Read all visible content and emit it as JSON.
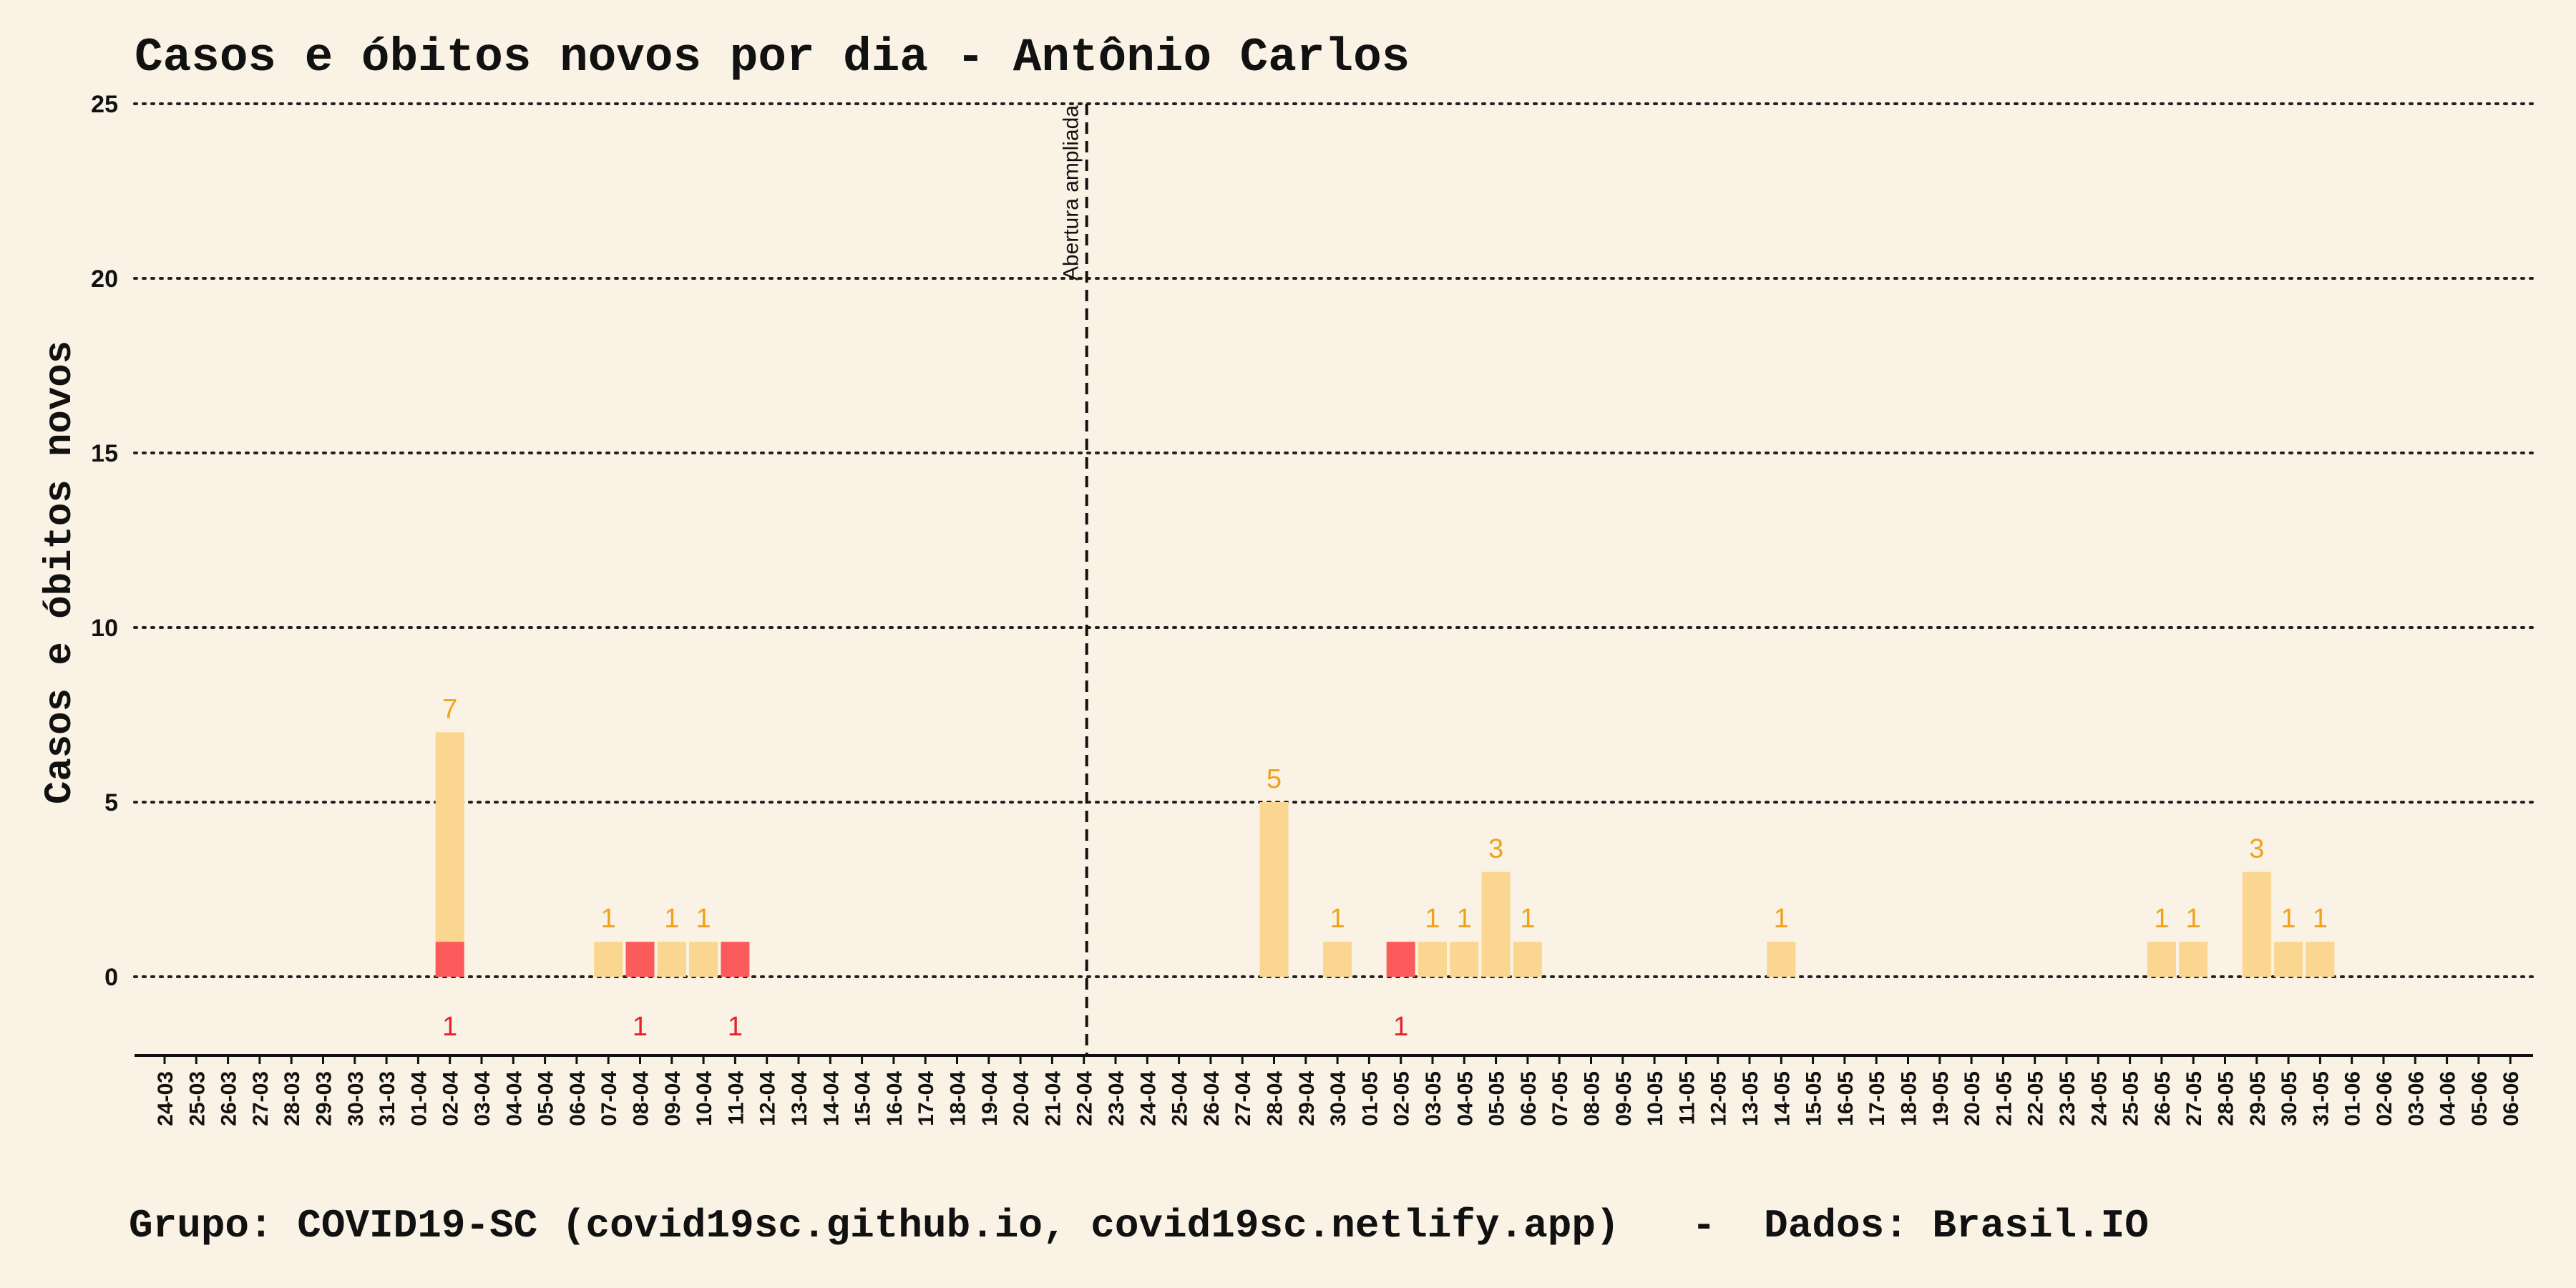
{
  "chart_data": {
    "type": "bar",
    "title": "Casos e óbitos novos por dia -  Antônio Carlos",
    "ylabel": "Casos e óbitos novos",
    "xlabel": "",
    "footer": "Grupo: COVID19-SC (covid19sc.github.io, covid19sc.netlify.app)   -  Dados: Brasil.IO",
    "ylim": [
      -2.2,
      25
    ],
    "yticks": [
      0,
      5,
      10,
      15,
      20,
      25
    ],
    "grid": true,
    "annotation": {
      "label": "Abertura ampliada",
      "x": "22-04"
    },
    "categories": [
      "24-03",
      "25-03",
      "26-03",
      "27-03",
      "28-03",
      "29-03",
      "30-03",
      "31-03",
      "01-04",
      "02-04",
      "03-04",
      "04-04",
      "05-04",
      "06-04",
      "07-04",
      "08-04",
      "09-04",
      "10-04",
      "11-04",
      "12-04",
      "13-04",
      "14-04",
      "15-04",
      "16-04",
      "17-04",
      "18-04",
      "19-04",
      "20-04",
      "21-04",
      "22-04",
      "23-04",
      "24-04",
      "25-04",
      "26-04",
      "27-04",
      "28-04",
      "29-04",
      "30-04",
      "01-05",
      "02-05",
      "03-05",
      "04-05",
      "05-05",
      "06-05",
      "07-05",
      "08-05",
      "09-05",
      "10-05",
      "11-05",
      "12-05",
      "13-05",
      "14-05",
      "15-05",
      "16-05",
      "17-05",
      "18-05",
      "19-05",
      "20-05",
      "21-05",
      "22-05",
      "23-05",
      "24-05",
      "25-05",
      "26-05",
      "27-05",
      "28-05",
      "29-05",
      "30-05",
      "31-05",
      "01-06",
      "02-06",
      "03-06",
      "04-06",
      "05-06",
      "06-06"
    ],
    "series": [
      {
        "color": "#fbd690",
        "label_color": "#f0a21a",
        "points": [
          {
            "x": "02-04",
            "value": 7
          },
          {
            "x": "07-04",
            "value": 1
          },
          {
            "x": "09-04",
            "value": 1
          },
          {
            "x": "10-04",
            "value": 1
          },
          {
            "x": "28-04",
            "value": 5
          },
          {
            "x": "30-04",
            "value": 1
          },
          {
            "x": "03-05",
            "value": 1
          },
          {
            "x": "04-05",
            "value": 1
          },
          {
            "x": "05-05",
            "value": 3
          },
          {
            "x": "06-05",
            "value": 1
          },
          {
            "x": "14-05",
            "value": 1
          },
          {
            "x": "26-05",
            "value": 1
          },
          {
            "x": "27-05",
            "value": 1
          },
          {
            "x": "29-05",
            "value": 3
          },
          {
            "x": "30-05",
            "value": 1
          },
          {
            "x": "31-05",
            "value": 1
          }
        ]
      },
      {
        "color": "#fc5b5b",
        "label_color": "#e8202a",
        "points": [
          {
            "x": "02-04",
            "value": 1
          },
          {
            "x": "08-04",
            "value": 1
          },
          {
            "x": "11-04",
            "value": 1
          },
          {
            "x": "02-05",
            "value": 1
          }
        ]
      }
    ],
    "colors": {
      "background": "#f9f2e5",
      "grid": "#222222",
      "axis": "#111111"
    }
  }
}
